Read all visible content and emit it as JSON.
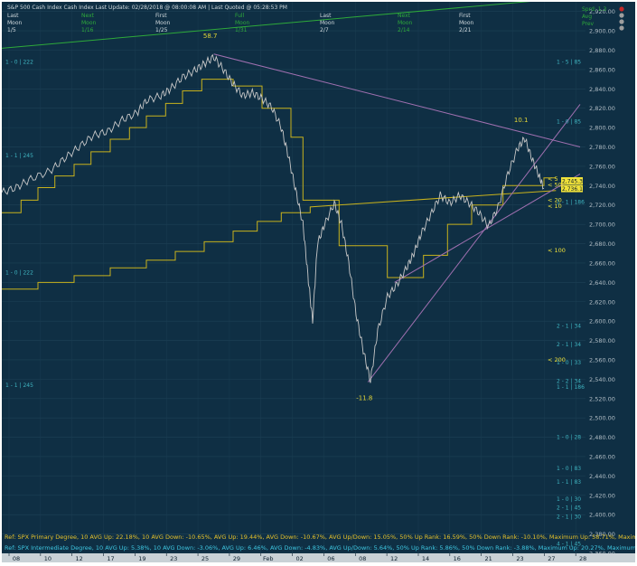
{
  "header": {
    "title": "S&P 500 Cash Index   Cash Index   Last Update: 02/28/2018 @ 08:00:08 AM | Last Quoted @ 05:28:53 PM",
    "moon_rows": [
      {
        "label": "Last",
        "value": "Moon",
        "date": "1/5"
      },
      {
        "label": "Next",
        "value": "Moon",
        "date": "1/16"
      },
      {
        "label": "First",
        "value": "Moon",
        "date": "1/25"
      },
      {
        "label": "Full",
        "value": "Moon",
        "date": "1/31"
      },
      {
        "label": "Last",
        "value": "Moon",
        "date": "2/7"
      },
      {
        "label": "Next",
        "value": "Moon",
        "date": "2/14"
      },
      {
        "label": "First",
        "value": "Moon",
        "date": "2/21"
      }
    ],
    "right_info": [
      "Sprd: 1.3",
      "Avg",
      "Prev"
    ]
  },
  "colors": {
    "background": "#0f2f44",
    "price": "#c8c8c8",
    "step_lines": "#c8b21c",
    "trend_lines": "#a070b0",
    "level_text": "#3fb4c0",
    "green_line": "#2eaa3a"
  },
  "chart_data": {
    "type": "line",
    "title": "S&P 500 Cash Index",
    "x_ticks": [
      "08",
      "10",
      "12",
      "17",
      "19",
      "23",
      "25",
      "29",
      "Feb",
      "02",
      "06",
      "08",
      "12",
      "14",
      "16",
      "21",
      "23",
      "27",
      "28"
    ],
    "ylim": [
      2360,
      2930
    ],
    "y_ticks": [
      2360,
      2380,
      2400,
      2420,
      2440,
      2460,
      2480,
      2500,
      2520,
      2540,
      2560,
      2580,
      2600,
      2620,
      2640,
      2660,
      2680,
      2700,
      2720,
      2740,
      2760,
      2780,
      2800,
      2820,
      2840,
      2860,
      2880,
      2900,
      2920
    ],
    "y_tick_labels": [
      "2,360.00",
      "2,380.00",
      "2,400.00",
      "2,420.00",
      "2,440.00",
      "2,460.00",
      "2,480.00",
      "2,500.00",
      "2,520.00",
      "2,540.00",
      "2,560.00",
      "2,580.00",
      "2,600.00",
      "2,620.00",
      "2,640.00",
      "2,660.00",
      "2,680.00",
      "2,700.00",
      "2,720.00",
      "2,740.00",
      "2,760.00",
      "2,780.00",
      "2,800.00",
      "2,820.00",
      "2,840.00",
      "2,860.00",
      "2,880.00",
      "2,900.00",
      "2,920.00"
    ],
    "price_path": [
      {
        "x": 0.0,
        "y": 2733
      },
      {
        "x": 0.6,
        "y": 2738
      },
      {
        "x": 1.2,
        "y": 2747
      },
      {
        "x": 2.0,
        "y": 2755
      },
      {
        "x": 2.6,
        "y": 2768
      },
      {
        "x": 3.2,
        "y": 2780
      },
      {
        "x": 3.8,
        "y": 2792
      },
      {
        "x": 4.4,
        "y": 2796
      },
      {
        "x": 5.0,
        "y": 2808
      },
      {
        "x": 5.6,
        "y": 2815
      },
      {
        "x": 6.0,
        "y": 2828
      },
      {
        "x": 6.6,
        "y": 2833
      },
      {
        "x": 7.0,
        "y": 2840
      },
      {
        "x": 7.5,
        "y": 2852
      },
      {
        "x": 8.0,
        "y": 2859
      },
      {
        "x": 8.4,
        "y": 2866
      },
      {
        "x": 8.8,
        "y": 2873
      },
      {
        "x": 9.2,
        "y": 2860
      },
      {
        "x": 9.6,
        "y": 2845
      },
      {
        "x": 10.0,
        "y": 2833
      },
      {
        "x": 10.4,
        "y": 2836
      },
      {
        "x": 10.8,
        "y": 2830
      },
      {
        "x": 11.2,
        "y": 2821
      },
      {
        "x": 11.6,
        "y": 2800
      },
      {
        "x": 11.9,
        "y": 2770
      },
      {
        "x": 12.2,
        "y": 2735
      },
      {
        "x": 12.5,
        "y": 2700
      },
      {
        "x": 12.7,
        "y": 2648
      },
      {
        "x": 12.9,
        "y": 2600
      },
      {
        "x": 13.1,
        "y": 2680
      },
      {
        "x": 13.4,
        "y": 2700
      },
      {
        "x": 13.8,
        "y": 2722
      },
      {
        "x": 14.1,
        "y": 2700
      },
      {
        "x": 14.4,
        "y": 2660
      },
      {
        "x": 14.7,
        "y": 2608
      },
      {
        "x": 15.0,
        "y": 2570
      },
      {
        "x": 15.3,
        "y": 2538
      },
      {
        "x": 15.6,
        "y": 2590
      },
      {
        "x": 16.0,
        "y": 2625
      },
      {
        "x": 16.4,
        "y": 2638
      },
      {
        "x": 16.8,
        "y": 2655
      },
      {
        "x": 17.1,
        "y": 2670
      },
      {
        "x": 17.4,
        "y": 2690
      },
      {
        "x": 17.8,
        "y": 2710
      },
      {
        "x": 18.2,
        "y": 2730
      },
      {
        "x": 18.6,
        "y": 2722
      },
      {
        "x": 19.0,
        "y": 2730
      },
      {
        "x": 19.4,
        "y": 2722
      },
      {
        "x": 19.8,
        "y": 2712
      },
      {
        "x": 20.2,
        "y": 2698
      },
      {
        "x": 20.6,
        "y": 2718
      },
      {
        "x": 21.0,
        "y": 2752
      },
      {
        "x": 21.4,
        "y": 2778
      },
      {
        "x": 21.7,
        "y": 2789
      },
      {
        "x": 22.0,
        "y": 2768
      },
      {
        "x": 22.3,
        "y": 2750
      },
      {
        "x": 22.5,
        "y": 2737
      }
    ],
    "price_scale_x_max": 24,
    "step_series": [
      {
        "points": [
          [
            0.0,
            2712
          ],
          [
            0.8,
            2712
          ],
          [
            0.8,
            2725
          ],
          [
            1.5,
            2725
          ],
          [
            1.5,
            2738
          ],
          [
            2.2,
            2738
          ],
          [
            2.2,
            2750
          ],
          [
            3.0,
            2750
          ],
          [
            3.0,
            2762
          ],
          [
            3.7,
            2762
          ],
          [
            3.7,
            2775
          ],
          [
            4.5,
            2775
          ],
          [
            4.5,
            2788
          ],
          [
            5.3,
            2788
          ],
          [
            5.3,
            2800
          ],
          [
            6.0,
            2800
          ],
          [
            6.0,
            2812
          ],
          [
            6.8,
            2812
          ],
          [
            6.8,
            2825
          ],
          [
            7.5,
            2825
          ],
          [
            7.5,
            2838
          ],
          [
            8.3,
            2838
          ],
          [
            8.3,
            2850
          ],
          [
            9.6,
            2850
          ],
          [
            9.6,
            2843
          ],
          [
            10.8,
            2843
          ],
          [
            10.8,
            2820
          ],
          [
            12.0,
            2820
          ],
          [
            12.0,
            2790
          ],
          [
            12.5,
            2790
          ],
          [
            12.5,
            2725
          ],
          [
            14.0,
            2725
          ],
          [
            14.0,
            2678
          ],
          [
            16.0,
            2678
          ],
          [
            16.0,
            2645
          ],
          [
            17.5,
            2645
          ],
          [
            17.5,
            2668
          ],
          [
            18.5,
            2668
          ],
          [
            18.5,
            2700
          ],
          [
            19.5,
            2700
          ],
          [
            19.5,
            2720
          ],
          [
            20.8,
            2720
          ],
          [
            20.8,
            2740
          ],
          [
            22.5,
            2740
          ],
          [
            22.5,
            2748
          ],
          [
            23.0,
            2748
          ]
        ]
      },
      {
        "points": [
          [
            0.0,
            2633
          ],
          [
            1.5,
            2633
          ],
          [
            1.5,
            2640
          ],
          [
            3.0,
            2640
          ],
          [
            3.0,
            2647
          ],
          [
            4.5,
            2647
          ],
          [
            4.5,
            2655
          ],
          [
            6.0,
            2655
          ],
          [
            6.0,
            2663
          ],
          [
            7.2,
            2663
          ],
          [
            7.2,
            2672
          ],
          [
            8.4,
            2672
          ],
          [
            8.4,
            2682
          ],
          [
            9.6,
            2682
          ],
          [
            9.6,
            2693
          ],
          [
            10.6,
            2693
          ],
          [
            10.6,
            2703
          ],
          [
            11.6,
            2703
          ],
          [
            11.6,
            2712
          ],
          [
            12.8,
            2712
          ],
          [
            12.8,
            2718
          ],
          [
            23.0,
            2735
          ]
        ]
      }
    ],
    "trend_lines": [
      {
        "from": [
          8.8,
          2876
        ],
        "to": [
          24,
          2780
        ]
      },
      {
        "from": [
          15.2,
          2537
        ],
        "to": [
          24,
          2824
        ]
      },
      {
        "from": [
          16.3,
          2640
        ],
        "to": [
          24,
          2752
        ]
      }
    ],
    "green_line": {
      "from": [
        0,
        2882
      ],
      "to": [
        24,
        2935
      ]
    },
    "peak_labels": [
      {
        "text": "58.7",
        "x": 8.8,
        "y": 2876,
        "pos": "above"
      },
      {
        "text": "10.1",
        "x": 21.7,
        "y": 2789,
        "pos": "above"
      },
      {
        "text": "-11.8",
        "x": 15.2,
        "y": 2537,
        "pos": "below"
      }
    ],
    "level_labels": [
      {
        "text": "1 - 0 | 222",
        "y": 2868,
        "side": "left"
      },
      {
        "text": "1 - 1 | 245",
        "y": 2771,
        "side": "left"
      },
      {
        "text": "1 - 0 | 222",
        "y": 2650,
        "side": "left"
      },
      {
        "text": "1 - 1 | 245",
        "y": 2534,
        "side": "left"
      },
      {
        "text": "1 - 5 | 85",
        "y": 2868,
        "side": "right"
      },
      {
        "text": "1 - 0 | 85",
        "y": 2806,
        "side": "right"
      },
      {
        "text": "1 - 1 | 186",
        "y": 2723,
        "side": "right"
      },
      {
        "text": "2 - 1 | 34",
        "y": 2595,
        "side": "right"
      },
      {
        "text": "2 - 1 | 34",
        "y": 2576,
        "side": "right"
      },
      {
        "text": "1 - 0 | 33",
        "y": 2557,
        "side": "right"
      },
      {
        "text": "2 - 2 | 34",
        "y": 2538,
        "side": "right"
      },
      {
        "text": "1 - 1 | 186",
        "y": 2532,
        "side": "right"
      },
      {
        "text": "1 - 0 | 28",
        "y": 2480,
        "side": "right"
      },
      {
        "text": "1 - 0 | 83",
        "y": 2448,
        "side": "right"
      },
      {
        "text": "1 - 1 | 83",
        "y": 2434,
        "side": "right"
      },
      {
        "text": "1 - 0 | 30",
        "y": 2416,
        "side": "right"
      },
      {
        "text": "2 - 1 | 45",
        "y": 2407,
        "side": "right"
      },
      {
        "text": "2 - 1 | 30",
        "y": 2398,
        "side": "right"
      },
      {
        "text": "4 - 1 | 45",
        "y": 2370,
        "side": "right"
      }
    ],
    "lt_labels": [
      {
        "text": "< 5",
        "y": 2747
      },
      {
        "text": "< 50",
        "y": 2741
      },
      {
        "text": "< 20",
        "y": 2725
      },
      {
        "text": "< 10",
        "y": 2719
      },
      {
        "text": "< 100",
        "y": 2673
      },
      {
        "text": "< 200",
        "y": 2560
      }
    ],
    "price_tags": [
      {
        "text": "2,745.3",
        "y": 2745
      },
      {
        "text": "2,736.1",
        "y": 2737
      }
    ]
  },
  "footer": {
    "ref1": "Ref: SPX Primary Degree, 10 AVG Up: 22.18%, 10 AVG Down: -10.65%, AVG Up: 19.44%, AVG Down: -10.67%, AVG Up/Down: 15.05%, 50%  Up Rank: 16.59%, 50% Down Rank: -10.10%, Maximum Up: 58.71%, Maximum Down",
    "ref2": "Ref: SPX Intermediate Degree, 10 AVG Up: 5.38%, 10 AVG Down: -3.06%, AVG Up: 6.46%, AVG Down: -4.83%, AVG Up/Down: 5.64%, 50%  Up Rank: 5.86%, 50% Down Rank: -3.88%, Maximum Up: 20.27%, Maximum Dc"
  }
}
